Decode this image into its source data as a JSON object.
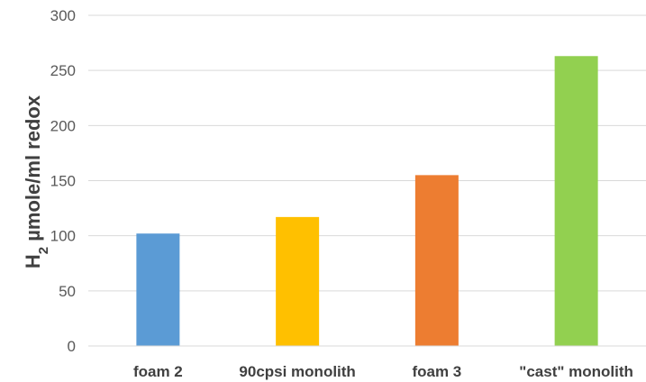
{
  "chart_data": {
    "type": "bar",
    "title": "",
    "xlabel": "",
    "ylabel": "H",
    "ylabel_subscript": "2",
    "ylabel_rest": " µmole/ml redox",
    "categories": [
      "foam 2",
      "90cpsi monolith",
      "foam 3",
      "\"cast\" monolith"
    ],
    "values": [
      102,
      117,
      155,
      263
    ],
    "colors": [
      "#5b9bd5",
      "#ffc000",
      "#ed7d31",
      "#92d050"
    ],
    "ylim": [
      0,
      300
    ],
    "yticks": [
      0,
      50,
      100,
      150,
      200,
      250,
      300
    ],
    "grid": true,
    "legend": "none"
  }
}
